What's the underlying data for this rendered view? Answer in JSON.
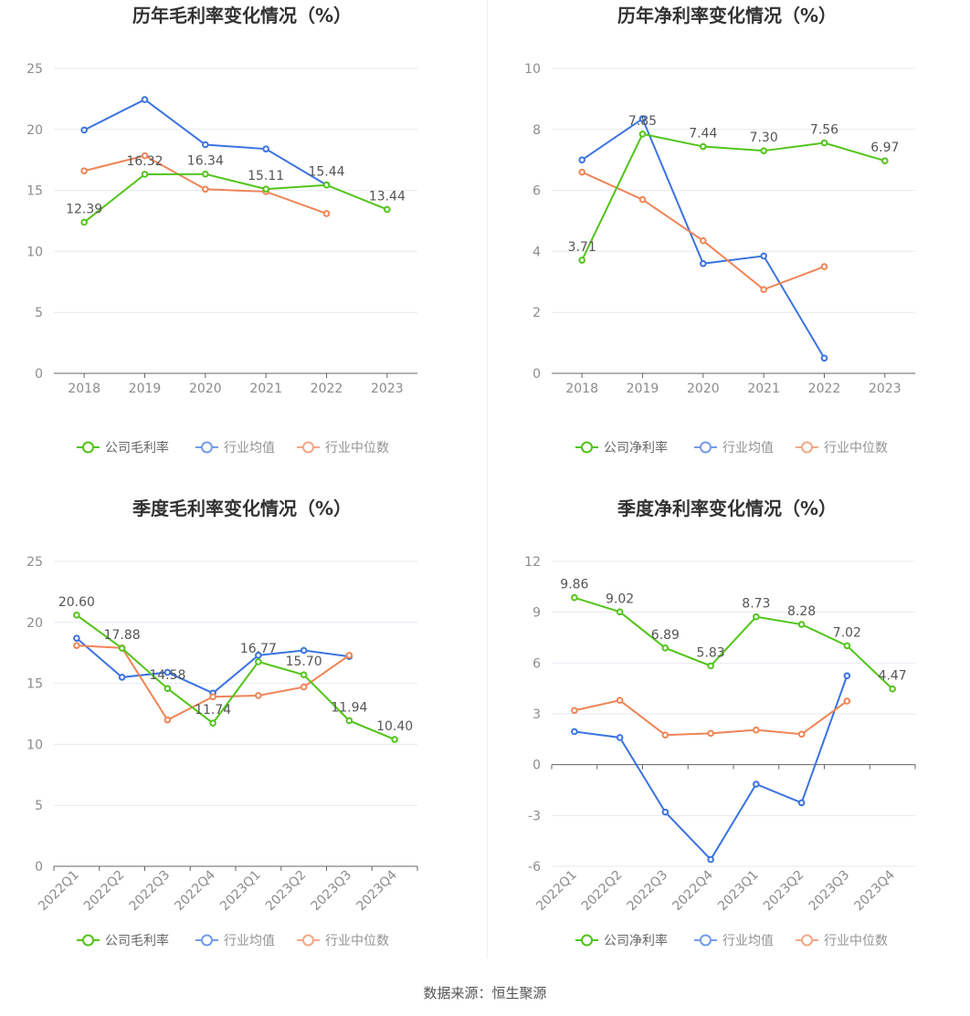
{
  "colors": {
    "company": "#52c41a",
    "avg": "#3a73e0",
    "median": "#ef8456",
    "grid": "#e6e9f2",
    "axis": "#666666",
    "tick": "#8c8c8c",
    "title": "#333333",
    "label": "#555555"
  },
  "legend": {
    "company_gross": "公司毛利率",
    "company_net": "公司净利率",
    "avg": "行业均值",
    "median": "行业中位数"
  },
  "source": "数据来源：恒生聚源",
  "chart_data": [
    {
      "type": "line",
      "title": "历年毛利率变化情况（%）",
      "categories": [
        "2018",
        "2019",
        "2020",
        "2021",
        "2022",
        "2023"
      ],
      "ylim": [
        0,
        25
      ],
      "yticks": [
        0,
        5,
        10,
        15,
        20,
        25
      ],
      "rotate_x": false,
      "legend_key": "company_gross",
      "series": [
        {
          "name": "公司毛利率",
          "color_key": "company",
          "values": [
            12.39,
            16.32,
            16.34,
            15.11,
            15.44,
            13.44
          ],
          "labels": [
            "12.39",
            "16.32",
            "16.34",
            "15.11",
            "15.44",
            "13.44"
          ]
        },
        {
          "name": "行业均值",
          "color_key": "avg",
          "values": [
            19.95,
            22.45,
            18.75,
            18.4,
            15.45,
            null
          ]
        },
        {
          "name": "行业中位数",
          "color_key": "median",
          "values": [
            16.6,
            17.85,
            15.1,
            14.9,
            13.1,
            null
          ]
        }
      ]
    },
    {
      "type": "line",
      "title": "历年净利率变化情况（%）",
      "categories": [
        "2018",
        "2019",
        "2020",
        "2021",
        "2022",
        "2023"
      ],
      "ylim": [
        0,
        10
      ],
      "yticks": [
        0,
        2,
        4,
        6,
        8,
        10
      ],
      "rotate_x": false,
      "legend_key": "company_net",
      "series": [
        {
          "name": "公司净利率",
          "color_key": "company",
          "values": [
            3.71,
            7.85,
            7.44,
            7.3,
            7.56,
            6.97
          ],
          "labels": [
            "3.71",
            "7.85",
            "7.44",
            "7.30",
            "7.56",
            "6.97"
          ]
        },
        {
          "name": "行业均值",
          "color_key": "avg",
          "values": [
            7.0,
            8.35,
            3.6,
            3.85,
            0.5,
            null
          ]
        },
        {
          "name": "行业中位数",
          "color_key": "median",
          "values": [
            6.6,
            5.7,
            4.35,
            2.75,
            3.5,
            null
          ]
        }
      ]
    },
    {
      "type": "line",
      "title": "季度毛利率变化情况（%）",
      "categories": [
        "2022Q1",
        "2022Q2",
        "2022Q3",
        "2022Q4",
        "2023Q1",
        "2023Q2",
        "2023Q3",
        "2023Q4"
      ],
      "ylim": [
        0,
        25
      ],
      "yticks": [
        0,
        5,
        10,
        15,
        20,
        25
      ],
      "rotate_x": true,
      "legend_key": "company_gross",
      "series": [
        {
          "name": "公司毛利率",
          "color_key": "company",
          "values": [
            20.6,
            17.88,
            14.58,
            11.74,
            16.77,
            15.7,
            11.94,
            10.4
          ],
          "labels": [
            "20.60",
            "17.88",
            "14.58",
            "11.74",
            "16.77",
            "15.70",
            "11.94",
            "10.40"
          ]
        },
        {
          "name": "行业均值",
          "color_key": "avg",
          "values": [
            18.7,
            15.5,
            15.9,
            14.2,
            17.3,
            17.7,
            17.2,
            null
          ]
        },
        {
          "name": "行业中位数",
          "color_key": "median",
          "values": [
            18.1,
            17.9,
            12.0,
            13.9,
            14.0,
            14.7,
            17.3,
            null
          ]
        }
      ]
    },
    {
      "type": "line",
      "title": "季度净利率变化情况（%）",
      "categories": [
        "2022Q1",
        "2022Q2",
        "2022Q3",
        "2022Q4",
        "2023Q1",
        "2023Q2",
        "2023Q3",
        "2023Q4"
      ],
      "ylim": [
        -6,
        12
      ],
      "yticks": [
        -6,
        -3,
        0,
        3,
        6,
        9,
        12
      ],
      "rotate_x": true,
      "legend_key": "company_net",
      "series": [
        {
          "name": "公司净利率",
          "color_key": "company",
          "values": [
            9.86,
            9.02,
            6.89,
            5.83,
            8.73,
            8.28,
            7.02,
            4.47
          ],
          "labels": [
            "9.86",
            "9.02",
            "6.89",
            "5.83",
            "8.73",
            "8.28",
            "7.02",
            "4.47"
          ]
        },
        {
          "name": "行业均值",
          "color_key": "avg",
          "values": [
            1.95,
            1.6,
            -2.8,
            -5.6,
            -1.15,
            -2.25,
            5.25,
            null
          ]
        },
        {
          "name": "行业中位数",
          "color_key": "median",
          "values": [
            3.2,
            3.8,
            1.75,
            1.85,
            2.05,
            1.8,
            3.75,
            null
          ]
        }
      ]
    }
  ]
}
